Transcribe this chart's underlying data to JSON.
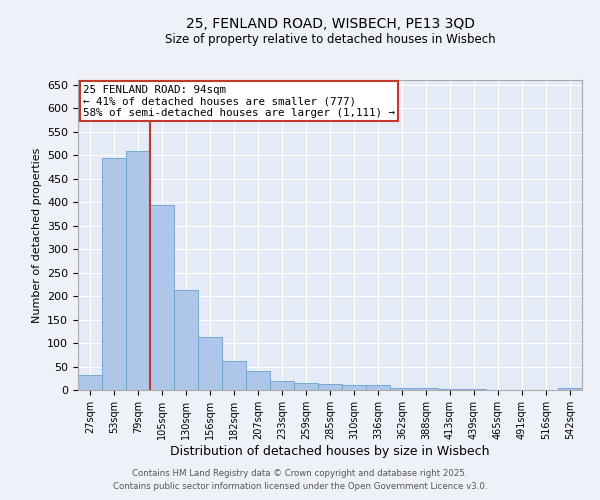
{
  "title1": "25, FENLAND ROAD, WISBECH, PE13 3QD",
  "title2": "Size of property relative to detached houses in Wisbech",
  "xlabel": "Distribution of detached houses by size in Wisbech",
  "ylabel": "Number of detached properties",
  "annotation_line1": "25 FENLAND ROAD: 94sqm",
  "annotation_line2": "← 41% of detached houses are smaller (777)",
  "annotation_line3": "58% of semi-detached houses are larger (1,111) →",
  "categories": [
    "27sqm",
    "53sqm",
    "79sqm",
    "105sqm",
    "130sqm",
    "156sqm",
    "182sqm",
    "207sqm",
    "233sqm",
    "259sqm",
    "285sqm",
    "310sqm",
    "336sqm",
    "362sqm",
    "388sqm",
    "413sqm",
    "439sqm",
    "465sqm",
    "491sqm",
    "516sqm",
    "542sqm"
  ],
  "values": [
    33,
    495,
    508,
    393,
    213,
    112,
    62,
    40,
    20,
    15,
    12,
    10,
    10,
    5,
    4,
    3,
    2,
    1,
    1,
    1,
    5
  ],
  "bar_color": "#aec6e8",
  "bar_edge_color": "#6a9fd0",
  "red_line_x": 2.5,
  "red_line_color": "#c0392b",
  "ylim": [
    0,
    660
  ],
  "yticks": [
    0,
    50,
    100,
    150,
    200,
    250,
    300,
    350,
    400,
    450,
    500,
    550,
    600,
    650
  ],
  "bg_color": "#eef2f8",
  "plot_bg_color": "#e4eaf6",
  "grid_color": "#ffffff",
  "annotation_box_color": "#c0392b",
  "footer1": "Contains HM Land Registry data © Crown copyright and database right 2025.",
  "footer2": "Contains public sector information licensed under the Open Government Licence v3.0."
}
